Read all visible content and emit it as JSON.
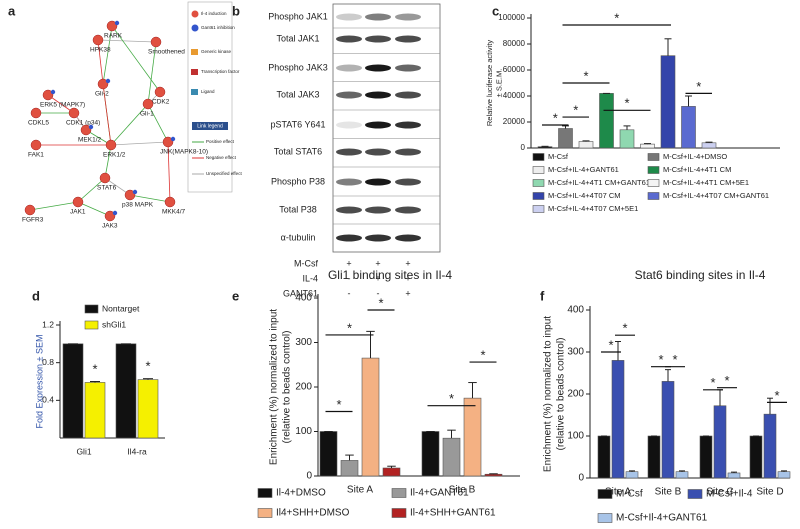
{
  "panel_labels": [
    "a",
    "b",
    "c",
    "d",
    "e",
    "f"
  ],
  "network": {
    "nodes": [
      "ERK5 (MAPK7)",
      "CDKL5",
      "CDK1 (p34)",
      "RARK",
      "HPK38",
      "Smoothened",
      "Gli-2",
      "CDK2",
      "Gli-1",
      "MEK1/2",
      "FAK1",
      "ERK1/2",
      "JNK(MAPK8-10)",
      "STAT6",
      "MKK4/7",
      "p38 MAPK",
      "FGFR3",
      "JAK1",
      "JAK3"
    ],
    "legend": [
      "Il-4 induction",
      "Gant61 inhibition",
      "Generic kinase",
      "Transcription factor",
      "Ligand"
    ],
    "link_legend_title": "Link legend",
    "link_legend": [
      "Positive effect",
      "Negative effect",
      "Unspecified effect"
    ]
  },
  "blot": {
    "rows": [
      "Phospho JAK1",
      "Total JAK1",
      "Phospho JAK3",
      "Total JAK3",
      "pSTAT6 Y641",
      "Total STAT6",
      "Phospho P38",
      "Total P38",
      "α-tubulin"
    ],
    "conditions": [
      {
        "label": "M-Csf",
        "marks": [
          "+",
          "+",
          "+"
        ]
      },
      {
        "label": "IL-4",
        "marks": [
          "-",
          "+",
          "+"
        ]
      },
      {
        "label": "GANT61",
        "marks": [
          "-",
          "-",
          "+"
        ]
      }
    ]
  },
  "chart_data": [
    {
      "type": "bar",
      "ylabel": [
        "Relative luciferase activity",
        "± S.E.M."
      ],
      "ylim": [
        0,
        100000
      ],
      "yticks": [
        0,
        20000,
        40000,
        60000,
        80000,
        100000
      ],
      "series": [
        {
          "name": "M-Csf",
          "color": "#111111",
          "values": [
            1000
          ],
          "errors": [
            300
          ]
        },
        {
          "name": "M-Csf+IL-4+DMSO",
          "color": "#777777",
          "values": [
            15000
          ],
          "errors": [
            2000
          ]
        },
        {
          "name": "M-Csf+IL-4+GANT61",
          "color": "#eeeeee",
          "values": [
            5000
          ],
          "errors": [
            500
          ]
        },
        {
          "name": "M-Csf+IL-4+4T1 CM",
          "color": "#1e8a4a",
          "values": [
            42000
          ],
          "errors": [
            0
          ]
        },
        {
          "name": "M-Csf+IL-4+4T1 CM+GANT61",
          "color": "#8fd8b0",
          "values": [
            14000
          ],
          "errors": [
            3000
          ]
        },
        {
          "name": "M-Csf+IL-4+4T1 CM+5E1",
          "color": "#f4f4f4",
          "values": [
            3000
          ],
          "errors": [
            400
          ]
        },
        {
          "name": "M-Csf+IL-4+4T07 CM",
          "color": "#3344aa",
          "values": [
            71000
          ],
          "errors": [
            13000
          ]
        },
        {
          "name": "M-Csf+IL-4+4T07 CM+GANT61",
          "color": "#5a6ad0",
          "values": [
            32000
          ],
          "errors": [
            8000
          ]
        },
        {
          "name": "M-Csf+IL-4+4T07 CM+5E1",
          "color": "#ccd0f0",
          "values": [
            4000
          ],
          "errors": [
            500
          ]
        }
      ],
      "annotations": [
        "*",
        "*",
        "*",
        "*",
        "*",
        "*"
      ]
    },
    {
      "type": "bar",
      "ylabel": [
        "Fold Expression ± SEM"
      ],
      "categories": [
        "Gli1",
        "Il4-ra"
      ],
      "ylim": [
        0,
        1.2
      ],
      "yticks": [
        0.4,
        0.8,
        1.2
      ],
      "series": [
        {
          "name": "Nontarget",
          "color": "#111111",
          "values": [
            1,
            1
          ],
          "errors": [
            0,
            0
          ]
        },
        {
          "name": "shGli1",
          "color": "#f5f000",
          "values": [
            0.59,
            0.62
          ],
          "errors": [
            0.01,
            0.01
          ]
        }
      ],
      "annotations": [
        "*",
        "*"
      ]
    },
    {
      "type": "bar",
      "title": "Gli1 binding sites in Il-4",
      "ylabel": [
        "Enrichment (%) normalized to input",
        "(relative to beads control)"
      ],
      "categories": [
        "Site A",
        "Site B"
      ],
      "ylim": [
        0,
        400
      ],
      "yticks": [
        0,
        100,
        200,
        300,
        400
      ],
      "series": [
        {
          "name": "Il-4+DMSO",
          "color": "#111111",
          "values": [
            100,
            100
          ],
          "errors": [
            0,
            0
          ]
        },
        {
          "name": "Il-4+GANT61",
          "color": "#999999",
          "values": [
            35,
            85
          ],
          "errors": [
            12,
            18
          ]
        },
        {
          "name": "Il4+SHH+DMSO",
          "color": "#f4b183",
          "values": [
            265,
            175
          ],
          "errors": [
            60,
            35
          ]
        },
        {
          "name": "Il-4+SHH+GANT61",
          "color": "#b22222",
          "values": [
            18,
            4
          ],
          "errors": [
            4,
            1
          ]
        }
      ],
      "annotations": [
        "*",
        "*",
        "*",
        "*",
        "*"
      ]
    },
    {
      "type": "bar",
      "title": "Stat6 binding sites in Il-4",
      "ylabel": [
        "Enrichment (%) normalized to input",
        "(relative to beads control)"
      ],
      "categories": [
        "Site A",
        "Site B",
        "Site C",
        "Site D"
      ],
      "ylim": [
        0,
        400
      ],
      "yticks": [
        0,
        100,
        200,
        300,
        400
      ],
      "series": [
        {
          "name": "M-Csf",
          "color": "#111111",
          "values": [
            100,
            100,
            100,
            100
          ],
          "errors": [
            0,
            0,
            0,
            0
          ]
        },
        {
          "name": "M-Csf+Il-4",
          "color": "#3a4fb0",
          "values": [
            280,
            230,
            172,
            152
          ],
          "errors": [
            45,
            28,
            38,
            38
          ]
        },
        {
          "name": "M-Csf+Il-4+GANT61",
          "color": "#a8c4e8",
          "values": [
            15,
            15,
            12,
            15
          ],
          "errors": [
            2,
            2,
            2,
            2
          ]
        }
      ],
      "annotations": [
        "*",
        "*",
        "*",
        "*",
        "*",
        "*",
        "*"
      ]
    }
  ]
}
